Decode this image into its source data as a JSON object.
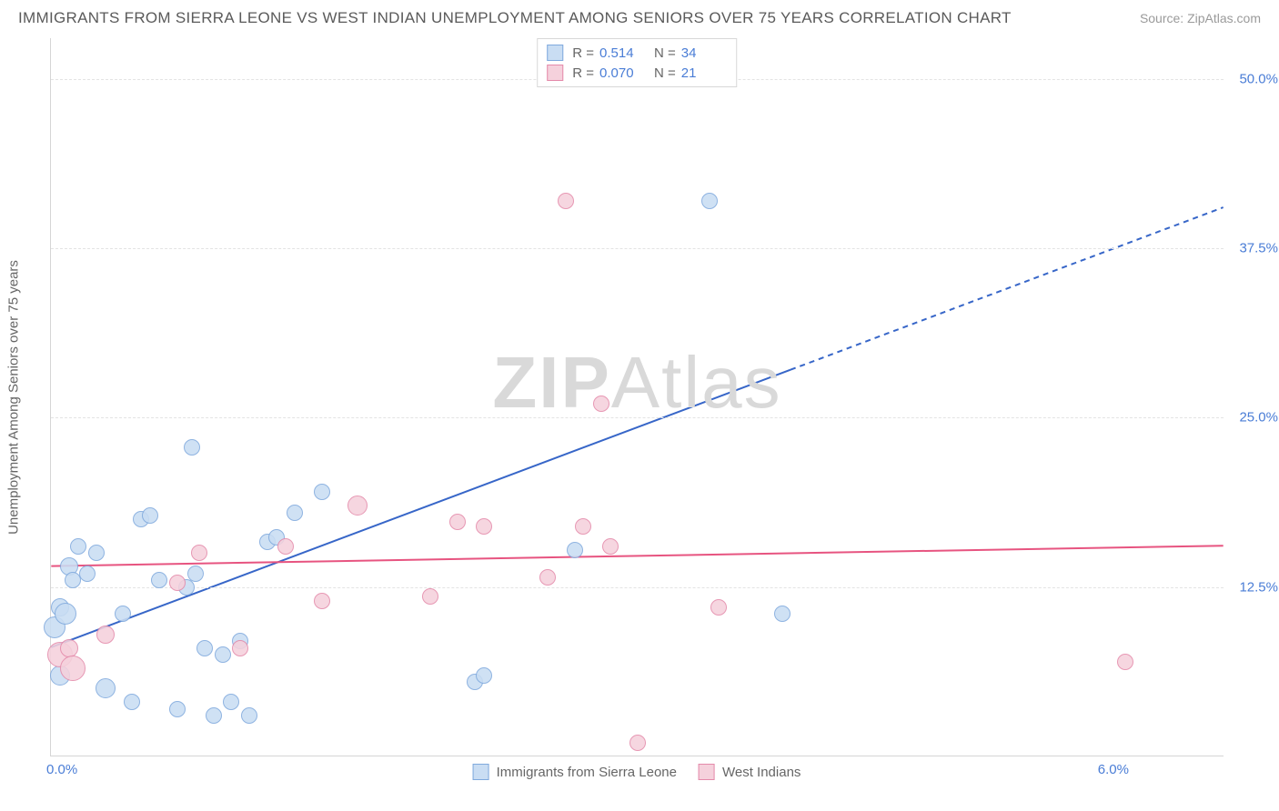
{
  "header": {
    "title": "IMMIGRANTS FROM SIERRA LEONE VS WEST INDIAN UNEMPLOYMENT AMONG SENIORS OVER 75 YEARS CORRELATION CHART",
    "source": "Source: ZipAtlas.com"
  },
  "watermark": "ZIPAtlas",
  "chart": {
    "type": "scatter",
    "ylabel": "Unemployment Among Seniors over 75 years",
    "xlim": [
      0.0,
      6.5
    ],
    "ylim": [
      0.0,
      53.0
    ],
    "yticks": [
      {
        "v": 12.5,
        "label": "12.5%"
      },
      {
        "v": 25.0,
        "label": "25.0%"
      },
      {
        "v": 37.5,
        "label": "37.5%"
      },
      {
        "v": 50.0,
        "label": "50.0%"
      }
    ],
    "xticks": [
      {
        "v": 0.0,
        "label": "0.0%"
      },
      {
        "v": 6.0,
        "label": "6.0%"
      }
    ],
    "background_color": "#ffffff",
    "grid_color": "#e3e3e3",
    "series": [
      {
        "name": "Immigrants from Sierra Leone",
        "fill": "#c9ddf3",
        "stroke": "#7fa9dd",
        "marker_radius_base": 10,
        "trend": {
          "color": "#3766c8",
          "width": 2,
          "x1": 0.0,
          "y1": 8.0,
          "x2": 4.1,
          "y2": 28.5,
          "x2_ext": 6.5,
          "y2_ext": 40.5,
          "dashed_after": 4.1
        },
        "points": [
          {
            "x": 0.02,
            "y": 9.5,
            "r": 12
          },
          {
            "x": 0.05,
            "y": 11.0,
            "r": 10
          },
          {
            "x": 0.08,
            "y": 10.5,
            "r": 12
          },
          {
            "x": 0.1,
            "y": 14.0,
            "r": 10
          },
          {
            "x": 0.12,
            "y": 13.0,
            "r": 9
          },
          {
            "x": 0.05,
            "y": 6.0,
            "r": 11
          },
          {
            "x": 0.15,
            "y": 15.5,
            "r": 9
          },
          {
            "x": 0.2,
            "y": 13.5,
            "r": 9
          },
          {
            "x": 0.25,
            "y": 15.0,
            "r": 9
          },
          {
            "x": 0.3,
            "y": 5.0,
            "r": 11
          },
          {
            "x": 0.4,
            "y": 10.5,
            "r": 9
          },
          {
            "x": 0.45,
            "y": 4.0,
            "r": 9
          },
          {
            "x": 0.5,
            "y": 17.5,
            "r": 9
          },
          {
            "x": 0.55,
            "y": 17.8,
            "r": 9
          },
          {
            "x": 0.6,
            "y": 13.0,
            "r": 9
          },
          {
            "x": 0.7,
            "y": 3.5,
            "r": 9
          },
          {
            "x": 0.75,
            "y": 12.5,
            "r": 9
          },
          {
            "x": 0.78,
            "y": 22.8,
            "r": 9
          },
          {
            "x": 0.8,
            "y": 13.5,
            "r": 9
          },
          {
            "x": 0.85,
            "y": 8.0,
            "r": 9
          },
          {
            "x": 0.9,
            "y": 3.0,
            "r": 9
          },
          {
            "x": 0.95,
            "y": 7.5,
            "r": 9
          },
          {
            "x": 1.0,
            "y": 4.0,
            "r": 9
          },
          {
            "x": 1.05,
            "y": 8.5,
            "r": 9
          },
          {
            "x": 1.1,
            "y": 3.0,
            "r": 9
          },
          {
            "x": 1.2,
            "y": 15.8,
            "r": 9
          },
          {
            "x": 1.25,
            "y": 16.2,
            "r": 9
          },
          {
            "x": 1.35,
            "y": 18.0,
            "r": 9
          },
          {
            "x": 1.5,
            "y": 19.5,
            "r": 9
          },
          {
            "x": 2.35,
            "y": 5.5,
            "r": 9
          },
          {
            "x": 2.4,
            "y": 6.0,
            "r": 9
          },
          {
            "x": 2.9,
            "y": 15.2,
            "r": 9
          },
          {
            "x": 3.65,
            "y": 41.0,
            "r": 9
          },
          {
            "x": 4.05,
            "y": 10.5,
            "r": 9
          }
        ]
      },
      {
        "name": "West Indians",
        "fill": "#f5d1dc",
        "stroke": "#e48aaa",
        "marker_radius_base": 10,
        "trend": {
          "color": "#e75480",
          "width": 2,
          "x1": 0.0,
          "y1": 14.0,
          "x2": 6.5,
          "y2": 15.5
        },
        "points": [
          {
            "x": 0.05,
            "y": 7.5,
            "r": 14
          },
          {
            "x": 0.1,
            "y": 8.0,
            "r": 10
          },
          {
            "x": 0.12,
            "y": 6.5,
            "r": 14
          },
          {
            "x": 0.3,
            "y": 9.0,
            "r": 10
          },
          {
            "x": 0.7,
            "y": 12.8,
            "r": 9
          },
          {
            "x": 0.82,
            "y": 15.0,
            "r": 9
          },
          {
            "x": 1.05,
            "y": 8.0,
            "r": 9
          },
          {
            "x": 1.3,
            "y": 15.5,
            "r": 9
          },
          {
            "x": 1.5,
            "y": 11.5,
            "r": 9
          },
          {
            "x": 1.7,
            "y": 18.5,
            "r": 11
          },
          {
            "x": 2.1,
            "y": 11.8,
            "r": 9
          },
          {
            "x": 2.25,
            "y": 17.3,
            "r": 9
          },
          {
            "x": 2.4,
            "y": 17.0,
            "r": 9
          },
          {
            "x": 2.75,
            "y": 13.2,
            "r": 9
          },
          {
            "x": 2.85,
            "y": 41.0,
            "r": 9
          },
          {
            "x": 2.95,
            "y": 17.0,
            "r": 9
          },
          {
            "x": 3.05,
            "y": 26.0,
            "r": 9
          },
          {
            "x": 3.1,
            "y": 15.5,
            "r": 9
          },
          {
            "x": 3.25,
            "y": 1.0,
            "r": 9
          },
          {
            "x": 5.95,
            "y": 7.0,
            "r": 9
          },
          {
            "x": 3.7,
            "y": 11.0,
            "r": 9
          }
        ]
      }
    ],
    "legend_top": [
      {
        "swatch_fill": "#c9ddf3",
        "swatch_stroke": "#7fa9dd",
        "r_label": "R =",
        "r_value": "0.514",
        "n_label": "N =",
        "n_value": "34"
      },
      {
        "swatch_fill": "#f5d1dc",
        "swatch_stroke": "#e48aaa",
        "r_label": "R =",
        "r_value": "0.070",
        "n_label": "N =",
        "n_value": "21"
      }
    ],
    "legend_bottom": [
      {
        "swatch_fill": "#c9ddf3",
        "swatch_stroke": "#7fa9dd",
        "label": "Immigrants from Sierra Leone"
      },
      {
        "swatch_fill": "#f5d1dc",
        "swatch_stroke": "#e48aaa",
        "label": "West Indians"
      }
    ]
  }
}
